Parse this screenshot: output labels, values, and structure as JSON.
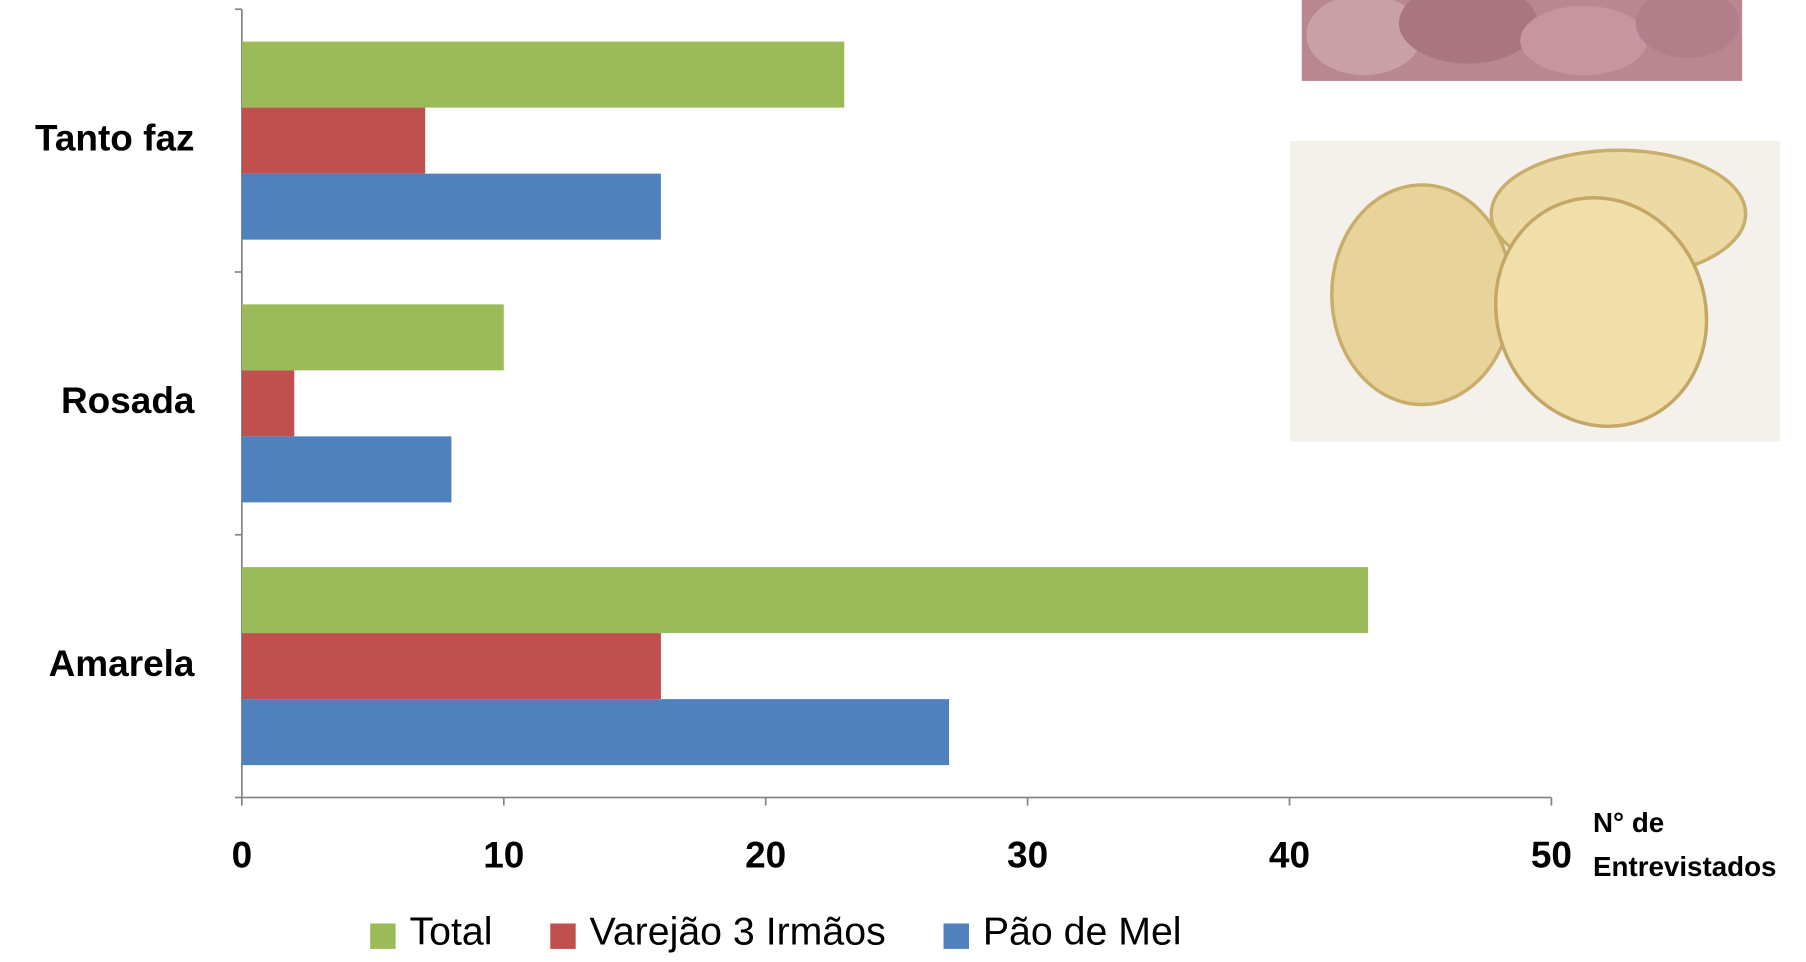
{
  "chart_data": {
    "type": "bar",
    "orientation": "horizontal",
    "categories": [
      "Amarela",
      "Rosada",
      "Tanto faz"
    ],
    "series": [
      {
        "name": "Total",
        "color": "#9bbb59",
        "values": [
          43,
          10,
          23
        ]
      },
      {
        "name": "Varejão 3 Irmãos",
        "color": "#c0504d",
        "values": [
          16,
          2,
          7
        ]
      },
      {
        "name": "Pão de Mel",
        "color": "#4f81bd",
        "values": [
          27,
          8,
          16
        ]
      }
    ],
    "x_label": "N° de Entrevistados",
    "xlim": [
      0,
      50
    ],
    "xticks": [
      0,
      10,
      20,
      30,
      40,
      50
    ],
    "legend": "bottom"
  }
}
